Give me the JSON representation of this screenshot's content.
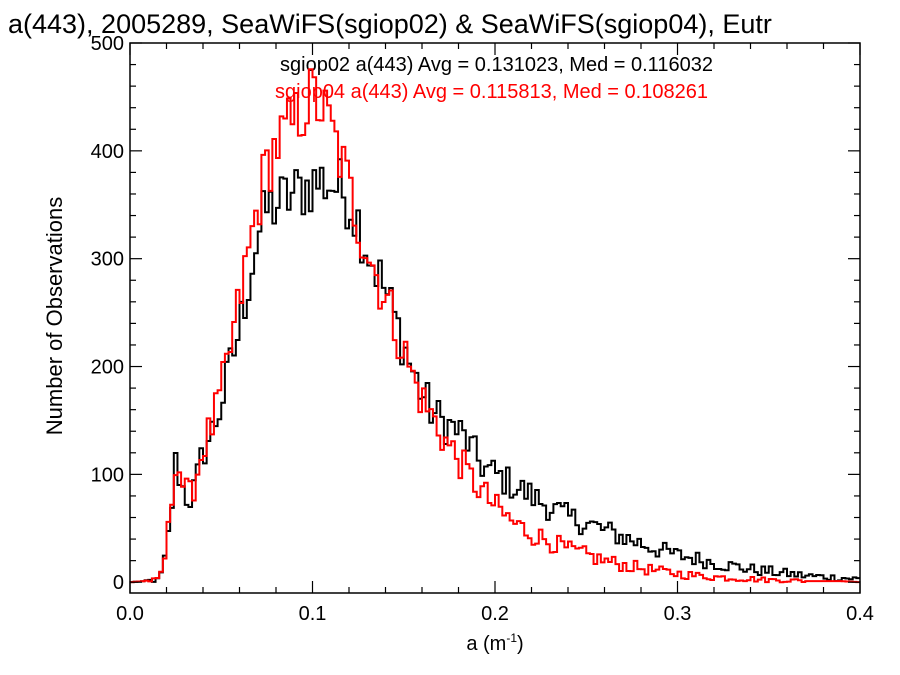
{
  "chart_data": {
    "type": "line",
    "title": "a(443), 2005289, SeaWiFS(sgiop02) & SeaWiFS(sgiop04), Eutr",
    "xlabel_base": "a (m",
    "xlabel_sup": "-1",
    "xlabel_close": ")",
    "ylabel": "Number of Observations",
    "xlim": [
      0,
      0.4
    ],
    "ylim": [
      -10,
      500
    ],
    "xticks": [
      0.0,
      0.1,
      0.2,
      0.3,
      0.4
    ],
    "xtick_labels": [
      "0.0",
      "0.1",
      "0.2",
      "0.3",
      "0.4"
    ],
    "yticks": [
      0,
      100,
      200,
      300,
      400,
      500
    ],
    "ytick_labels": [
      "0",
      "100",
      "200",
      "300",
      "400",
      "500"
    ],
    "grid": false,
    "annotations": [
      {
        "text": "sgiop02 a(443) Avg = 0.131023, Med = 0.116032",
        "color": "#000000"
      },
      {
        "text": "sgiop04 a(443) Avg = 0.115813, Med = 0.108261",
        "color": "#ff0000"
      }
    ],
    "series": [
      {
        "color": "#000000",
        "x": [
          0.0,
          0.015,
          0.018,
          0.02,
          0.022,
          0.025,
          0.027,
          0.03,
          0.033,
          0.036,
          0.04,
          0.045,
          0.05,
          0.055,
          0.06,
          0.065,
          0.07,
          0.075,
          0.08,
          0.085,
          0.09,
          0.095,
          0.1,
          0.105,
          0.11,
          0.115,
          0.12,
          0.125,
          0.13,
          0.135,
          0.14,
          0.145,
          0.15,
          0.155,
          0.16,
          0.165,
          0.17,
          0.175,
          0.18,
          0.185,
          0.19,
          0.195,
          0.2,
          0.21,
          0.22,
          0.23,
          0.24,
          0.25,
          0.26,
          0.27,
          0.28,
          0.29,
          0.3,
          0.31,
          0.32,
          0.33,
          0.34,
          0.35,
          0.36,
          0.37,
          0.38,
          0.39,
          0.4
        ],
        "y": [
          0,
          2,
          10,
          30,
          55,
          110,
          100,
          80,
          78,
          90,
          120,
          140,
          165,
          200,
          235,
          280,
          320,
          345,
          350,
          355,
          360,
          365,
          370,
          372,
          370,
          365,
          355,
          335,
          310,
          290,
          270,
          245,
          220,
          195,
          175,
          160,
          150,
          145,
          140,
          130,
          115,
          105,
          100,
          90,
          80,
          70,
          60,
          55,
          48,
          42,
          36,
          30,
          25,
          22,
          18,
          15,
          12,
          10,
          8,
          6,
          5,
          4,
          3
        ]
      },
      {
        "color": "#ff0000",
        "x": [
          0.0,
          0.015,
          0.018,
          0.02,
          0.022,
          0.025,
          0.027,
          0.03,
          0.033,
          0.036,
          0.04,
          0.045,
          0.05,
          0.055,
          0.06,
          0.065,
          0.07,
          0.075,
          0.08,
          0.085,
          0.09,
          0.095,
          0.1,
          0.105,
          0.11,
          0.115,
          0.12,
          0.125,
          0.13,
          0.135,
          0.14,
          0.145,
          0.15,
          0.155,
          0.16,
          0.165,
          0.17,
          0.175,
          0.18,
          0.185,
          0.19,
          0.195,
          0.2,
          0.21,
          0.22,
          0.23,
          0.24,
          0.25,
          0.26,
          0.27,
          0.28,
          0.29,
          0.3,
          0.31,
          0.32,
          0.33,
          0.34,
          0.35,
          0.36,
          0.37,
          0.38,
          0.39,
          0.4
        ],
        "y": [
          0,
          2,
          12,
          35,
          60,
          115,
          105,
          85,
          80,
          95,
          125,
          145,
          175,
          215,
          260,
          305,
          350,
          385,
          405,
          415,
          425,
          440,
          450,
          440,
          420,
          395,
          365,
          335,
          310,
          285,
          265,
          240,
          215,
          190,
          170,
          155,
          140,
          125,
          115,
          100,
          90,
          80,
          70,
          55,
          45,
          38,
          30,
          25,
          20,
          16,
          13,
          10,
          8,
          6,
          5,
          4,
          3,
          2,
          2,
          1,
          1,
          1,
          0
        ]
      }
    ]
  }
}
